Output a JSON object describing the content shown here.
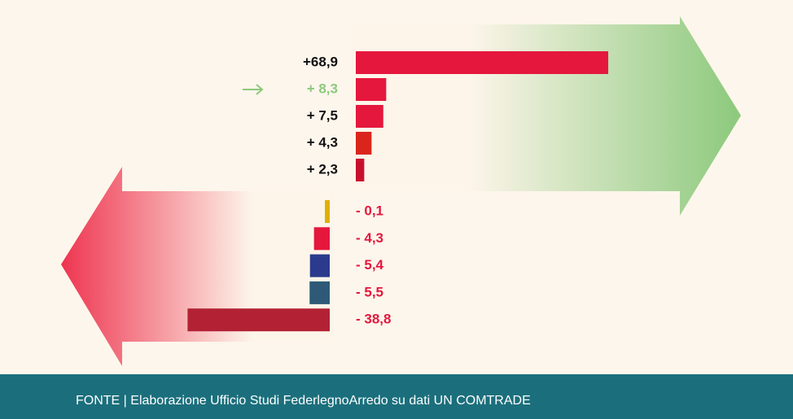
{
  "chart_data": {
    "type": "bar",
    "values": [
      68.9,
      8.3,
      7.5,
      4.3,
      2.3,
      -0.1,
      -4.3,
      -5.4,
      -5.5,
      -38.8
    ],
    "value_labels": [
      "+68,9",
      "+ 8,3",
      "+ 7,5",
      "+ 4,3",
      "+ 2,3",
      "- 0,1",
      "- 4,3",
      "- 5,4",
      "- 5,5",
      "- 38,8"
    ],
    "colors": [
      "#e5173d",
      "#e5173d",
      "#e5173d",
      "#da251d",
      "#c8102e",
      "#e0b000",
      "#e5173d",
      "#2b3a8c",
      "#2e5a78",
      "#b22234"
    ],
    "highlight": 1,
    "source": "FONTE | Elaborazione Ufficio Studi FederlegnoArredo su dati UN COMTRADE"
  }
}
